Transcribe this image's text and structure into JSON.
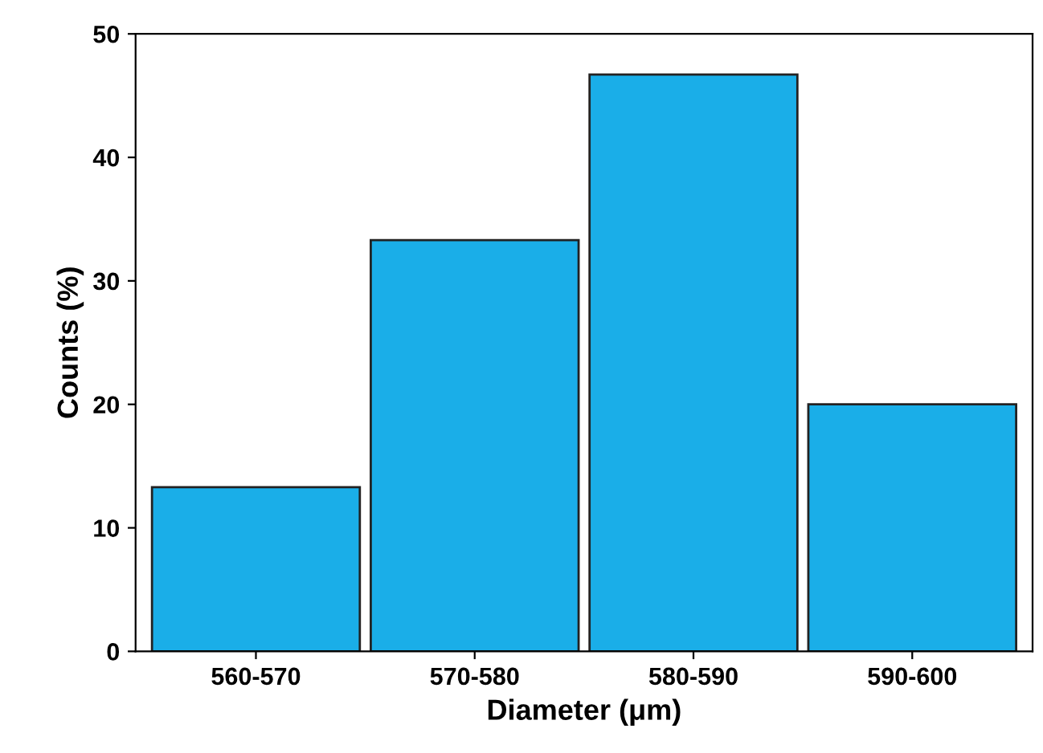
{
  "chart_data": {
    "type": "bar",
    "xlabel": "Diameter (μm)",
    "ylabel": "Counts (%)",
    "categories": [
      "560-570",
      "570-580",
      "580-590",
      "590-600"
    ],
    "values": [
      13.3,
      33.3,
      46.7,
      20
    ],
    "color": "#1aaee8",
    "ylim": [
      0,
      50
    ],
    "yticks": [
      0,
      10,
      20,
      30,
      40,
      50
    ],
    "grid": false
  }
}
